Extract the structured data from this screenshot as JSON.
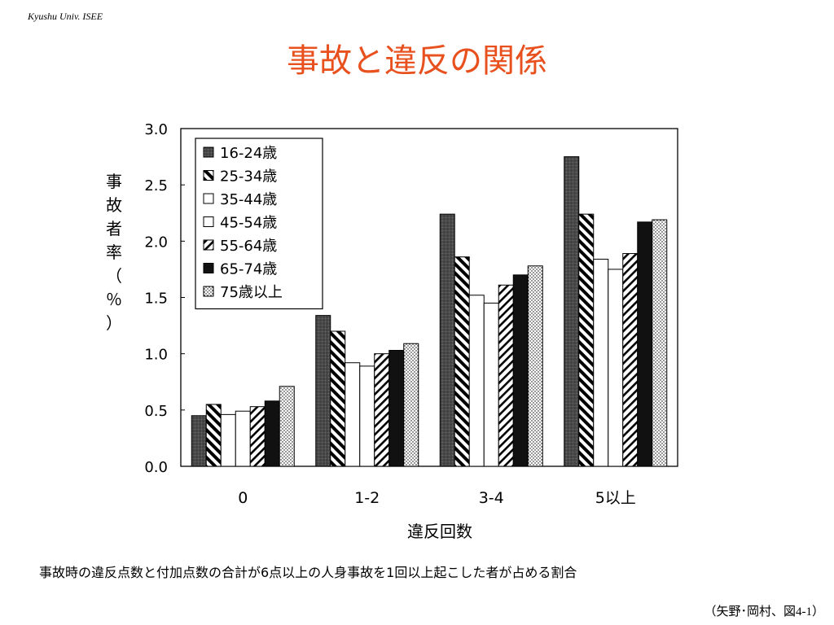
{
  "header": {
    "tag": "Kyushu Univ. ISEE"
  },
  "slide": {
    "title": "事故と違反の関係",
    "caption": "事故時の違反点数と付加点数の合計が6点以上の人身事故を1回以上起こした者が占める割合",
    "citation": "（矢野･岡村、図4-1）"
  },
  "chart_data": {
    "type": "bar",
    "xlabel": "違反回数",
    "ylabel": "事故者率（％）",
    "ylim": [
      0,
      3.0
    ],
    "yticks": [
      "0.0",
      "0.5",
      "1.0",
      "1.5",
      "2.0",
      "2.5",
      "3.0"
    ],
    "grid": false,
    "legend_position": "top-left",
    "categories": [
      "0",
      "1-2",
      "3-4",
      "5以上"
    ],
    "series": [
      {
        "name": "16-24歳",
        "pattern": "grid-dark",
        "values": [
          0.45,
          1.34,
          2.24,
          2.75
        ]
      },
      {
        "name": "25-34歳",
        "pattern": "diagonal-thick",
        "values": [
          0.55,
          1.2,
          1.86,
          2.24
        ]
      },
      {
        "name": "35-44歳",
        "pattern": "white",
        "values": [
          0.46,
          0.92,
          1.52,
          1.84
        ]
      },
      {
        "name": "45-54歳",
        "pattern": "white",
        "values": [
          0.49,
          0.89,
          1.45,
          1.75
        ]
      },
      {
        "name": "55-64歳",
        "pattern": "diagonal-thin",
        "values": [
          0.53,
          1.0,
          1.61,
          1.89
        ]
      },
      {
        "name": "65-74歳",
        "pattern": "black",
        "values": [
          0.58,
          1.03,
          1.7,
          2.17
        ]
      },
      {
        "name": "75歳以上",
        "pattern": "dots",
        "values": [
          0.71,
          1.09,
          1.78,
          2.19
        ]
      }
    ]
  }
}
